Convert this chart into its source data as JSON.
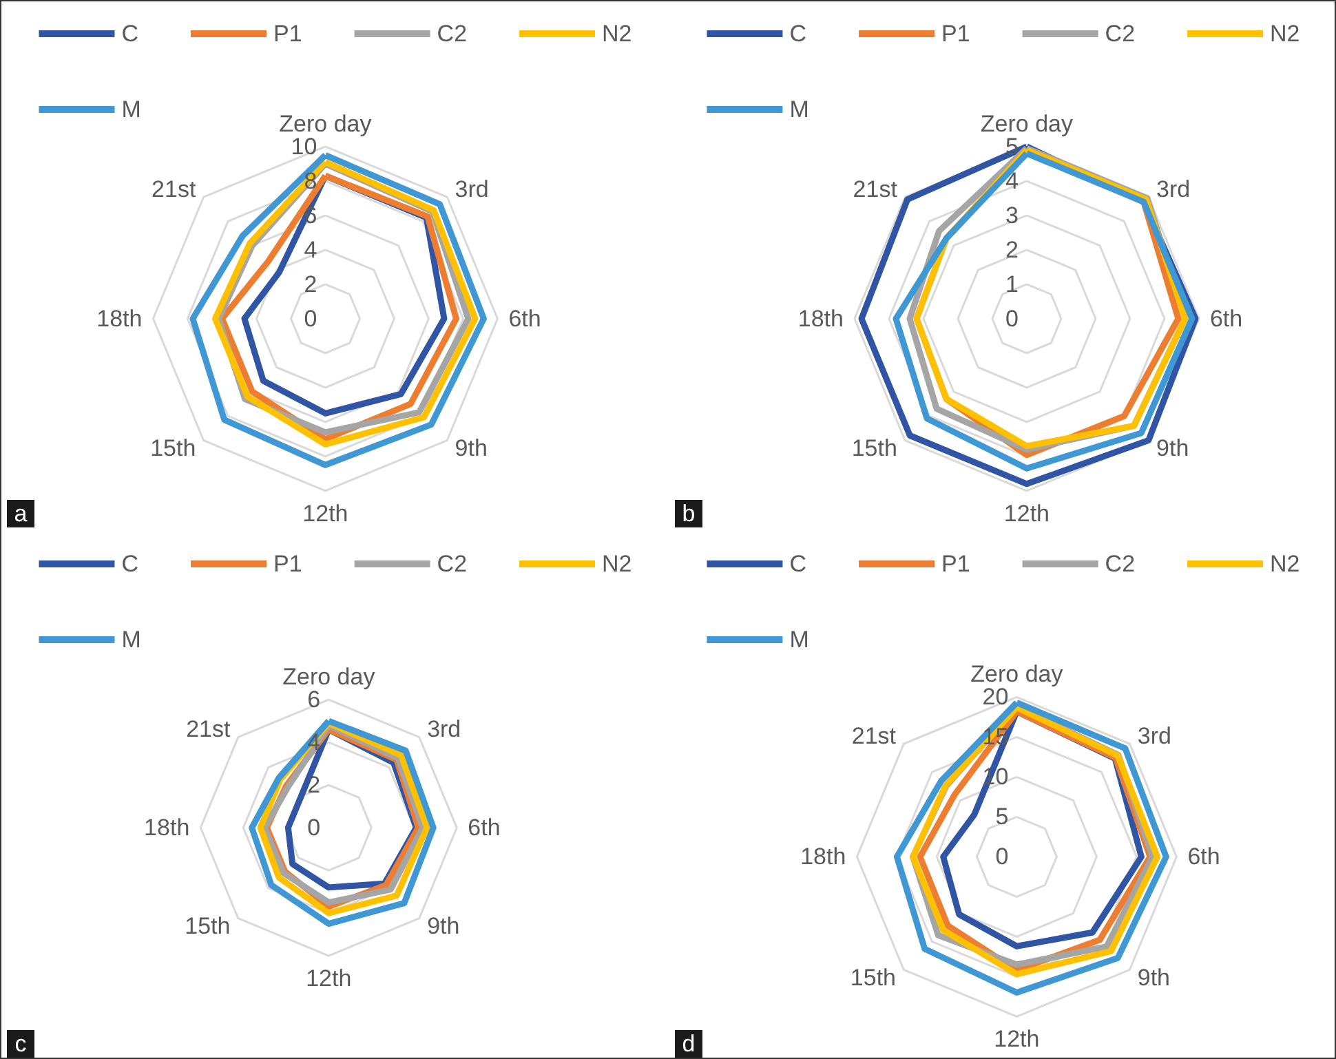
{
  "chart_data": [
    {
      "type": "radar",
      "categories": [
        "Zero day",
        "3rd",
        "6th",
        "9th",
        "12th",
        "15th",
        "18th",
        "21st"
      ],
      "ylim": [
        0,
        10
      ],
      "yticks": [
        0,
        2,
        4,
        6,
        8,
        10
      ],
      "grid": true,
      "legend": "top",
      "marker": "none",
      "line_style": "solid",
      "annotations": [
        "a"
      ],
      "series": [
        {
          "name": "C",
          "color": "#2f55a4",
          "values": [
            8.3,
            8.3,
            6.9,
            6.2,
            5.5,
            5.1,
            4.7,
            3.8
          ]
        },
        {
          "name": "P1",
          "color": "#ed7d31",
          "values": [
            8.3,
            8.4,
            7.6,
            7.0,
            7.0,
            6.0,
            6.0,
            4.7
          ]
        },
        {
          "name": "C2",
          "color": "#a5a5a5",
          "values": [
            9.0,
            8.8,
            8.3,
            7.7,
            6.6,
            6.6,
            6.2,
            6.0
          ]
        },
        {
          "name": "N2",
          "color": "#ffc000",
          "values": [
            9.1,
            8.9,
            8.7,
            8.1,
            7.3,
            6.4,
            6.4,
            6.2
          ]
        },
        {
          "name": "M",
          "color": "#3f97d4",
          "values": [
            9.5,
            9.4,
            9.2,
            8.7,
            8.5,
            8.3,
            7.7,
            6.8
          ]
        }
      ]
    },
    {
      "type": "radar",
      "categories": [
        "Zero day",
        "3rd",
        "6th",
        "9th",
        "12th",
        "15th",
        "18th",
        "21st"
      ],
      "ylim": [
        0,
        5
      ],
      "yticks": [
        0,
        1,
        2,
        3,
        4,
        5
      ],
      "grid": true,
      "legend": "top",
      "marker": "none",
      "line_style": "solid",
      "annotations": [
        "b"
      ],
      "series": [
        {
          "name": "C",
          "color": "#2f55a4",
          "values": [
            5.0,
            4.8,
            4.9,
            5.0,
            4.8,
            4.8,
            4.8,
            4.9
          ]
        },
        {
          "name": "P1",
          "color": "#ed7d31",
          "values": [
            4.85,
            4.8,
            4.4,
            4.0,
            3.96,
            3.3,
            3.2,
            3.3
          ]
        },
        {
          "name": "C2",
          "color": "#a5a5a5",
          "values": [
            4.95,
            4.95,
            4.6,
            4.4,
            3.8,
            3.7,
            3.4,
            3.6
          ]
        },
        {
          "name": "N2",
          "color": "#ffc000",
          "values": [
            4.9,
            4.9,
            4.6,
            4.4,
            3.7,
            3.3,
            3.2,
            3.3
          ]
        },
        {
          "name": "M",
          "color": "#3f97d4",
          "values": [
            4.8,
            4.8,
            4.8,
            4.7,
            4.35,
            4.1,
            3.8,
            3.3
          ]
        }
      ]
    },
    {
      "type": "radar",
      "categories": [
        "Zero day",
        "3rd",
        "6th",
        "9th",
        "12th",
        "15th",
        "18th",
        "21st"
      ],
      "ylim": [
        0,
        6
      ],
      "yticks": [
        0,
        2,
        4,
        6
      ],
      "grid": true,
      "legend": "top",
      "marker": "none",
      "line_style": "solid",
      "annotations": [
        "c"
      ],
      "series": [
        {
          "name": "C",
          "color": "#2f55a4",
          "values": [
            4.6,
            4.3,
            4.1,
            3.7,
            2.8,
            2.4,
            1.9,
            1.9
          ]
        },
        {
          "name": "P1",
          "color": "#ed7d31",
          "values": [
            4.6,
            4.5,
            4.2,
            3.8,
            3.7,
            2.9,
            2.9,
            2.8
          ]
        },
        {
          "name": "C2",
          "color": "#a5a5a5",
          "values": [
            4.8,
            4.6,
            4.4,
            4.1,
            3.5,
            3.0,
            3.0,
            2.7
          ]
        },
        {
          "name": "N2",
          "color": "#ffc000",
          "values": [
            4.9,
            4.8,
            4.6,
            4.5,
            4.0,
            3.3,
            3.2,
            3.2
          ]
        },
        {
          "name": "M",
          "color": "#3f97d4",
          "values": [
            5.0,
            5.1,
            4.9,
            5.0,
            4.5,
            3.8,
            3.6,
            3.3
          ]
        }
      ]
    },
    {
      "type": "radar",
      "categories": [
        "Zero day",
        "3rd",
        "6th",
        "9th",
        "12th",
        "15th",
        "18th",
        "21st"
      ],
      "ylim": [
        0,
        20
      ],
      "yticks": [
        0,
        5,
        10,
        15,
        20
      ],
      "grid": true,
      "legend": "top",
      "marker": "none",
      "line_style": "solid",
      "annotations": [
        "d"
      ],
      "series": [
        {
          "name": "C",
          "color": "#2f55a4",
          "values": [
            18.2,
            17.4,
            15.6,
            13.4,
            11.2,
            10.2,
            9.2,
            7.5
          ]
        },
        {
          "name": "P1",
          "color": "#ed7d31",
          "values": [
            18.2,
            17.5,
            16.7,
            14.7,
            14.2,
            12.2,
            12.1,
            11.0
          ]
        },
        {
          "name": "C2",
          "color": "#a5a5a5",
          "values": [
            18.8,
            18.0,
            17.0,
            15.9,
            13.5,
            13.9,
            13.0,
            12.5
          ]
        },
        {
          "name": "N2",
          "color": "#ffc000",
          "values": [
            18.7,
            17.9,
            17.6,
            16.7,
            14.7,
            13.0,
            13.0,
            12.6
          ]
        },
        {
          "name": "M",
          "color": "#3f97d4",
          "values": [
            19.3,
            19.2,
            18.7,
            17.9,
            17.0,
            16.3,
            15.0,
            13.4
          ]
        }
      ]
    }
  ]
}
